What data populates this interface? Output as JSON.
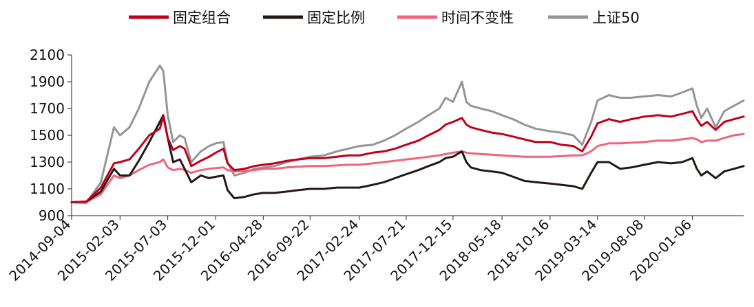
{
  "chart_data": {
    "type": "line",
    "title": "",
    "xlabel": "",
    "ylabel": "",
    "ylim": [
      900,
      2100
    ],
    "yticks": [
      900,
      1100,
      1300,
      1500,
      1700,
      1900,
      2100
    ],
    "grid": false,
    "legend_position": "top",
    "x_tick_labels": [
      "2014-09-04",
      "2015-02-03",
      "2015-07-03",
      "2015-12-01",
      "2016-04-28",
      "2016-09-22",
      "2017-02-24",
      "2017-07-21",
      "2017-12-15",
      "2018-05-18",
      "2018-10-16",
      "2019-03-14",
      "2019-08-08",
      "2020-01-06"
    ],
    "x": [
      "2014-09-04",
      "2014-10-20",
      "2014-12-05",
      "2015-01-15",
      "2015-02-03",
      "2015-03-05",
      "2015-04-03",
      "2015-05-06",
      "2015-06-08",
      "2015-06-19",
      "2015-07-03",
      "2015-07-20",
      "2015-08-10",
      "2015-08-25",
      "2015-09-15",
      "2015-10-15",
      "2015-11-10",
      "2015-12-01",
      "2015-12-25",
      "2016-01-07",
      "2016-01-28",
      "2016-02-29",
      "2016-03-31",
      "2016-04-28",
      "2016-06-02",
      "2016-07-12",
      "2016-08-15",
      "2016-09-22",
      "2016-11-04",
      "2016-12-15",
      "2017-01-20",
      "2017-02-24",
      "2017-04-07",
      "2017-05-12",
      "2017-06-16",
      "2017-07-21",
      "2017-08-28",
      "2017-09-29",
      "2017-11-02",
      "2017-11-22",
      "2017-12-15",
      "2018-01-12",
      "2018-01-26",
      "2018-02-09",
      "2018-03-12",
      "2018-04-16",
      "2018-05-18",
      "2018-06-22",
      "2018-07-27",
      "2018-08-31",
      "2018-10-16",
      "2018-11-20",
      "2018-12-28",
      "2019-01-25",
      "2019-02-22",
      "2019-03-14",
      "2019-04-19",
      "2019-05-24",
      "2019-06-28",
      "2019-08-08",
      "2019-09-20",
      "2019-10-31",
      "2019-12-05",
      "2020-01-06",
      "2020-01-20",
      "2020-02-03",
      "2020-02-21",
      "2020-03-19",
      "2020-04-15",
      "2020-05-15",
      "2020-06-15"
    ],
    "series": [
      {
        "name": "固定组合",
        "color": "#c00018",
        "values": [
          1000,
          1005,
          1110,
          1290,
          1300,
          1320,
          1400,
          1500,
          1550,
          1640,
          1480,
          1390,
          1420,
          1400,
          1270,
          1310,
          1340,
          1370,
          1400,
          1290,
          1240,
          1250,
          1270,
          1280,
          1290,
          1310,
          1320,
          1330,
          1330,
          1340,
          1350,
          1350,
          1370,
          1380,
          1400,
          1430,
          1460,
          1500,
          1540,
          1580,
          1600,
          1630,
          1580,
          1560,
          1540,
          1520,
          1510,
          1490,
          1470,
          1450,
          1450,
          1430,
          1420,
          1380,
          1490,
          1590,
          1620,
          1600,
          1620,
          1640,
          1650,
          1640,
          1660,
          1680,
          1620,
          1570,
          1600,
          1540,
          1600,
          1620,
          1640
        ]
      },
      {
        "name": "固定比例",
        "color": "#231816",
        "values": [
          1000,
          1005,
          1080,
          1250,
          1200,
          1200,
          1310,
          1450,
          1600,
          1650,
          1480,
          1300,
          1320,
          1250,
          1150,
          1200,
          1180,
          1190,
          1200,
          1090,
          1030,
          1040,
          1060,
          1070,
          1070,
          1080,
          1090,
          1100,
          1100,
          1110,
          1110,
          1110,
          1130,
          1150,
          1180,
          1210,
          1240,
          1270,
          1300,
          1330,
          1340,
          1380,
          1300,
          1260,
          1240,
          1230,
          1220,
          1190,
          1160,
          1150,
          1140,
          1130,
          1120,
          1100,
          1220,
          1300,
          1300,
          1250,
          1260,
          1280,
          1300,
          1290,
          1300,
          1330,
          1250,
          1200,
          1230,
          1180,
          1230,
          1250,
          1270
        ]
      },
      {
        "name": "时间不变性",
        "color": "#f0637b",
        "values": [
          1000,
          1000,
          1060,
          1200,
          1180,
          1200,
          1240,
          1280,
          1300,
          1320,
          1260,
          1240,
          1250,
          1240,
          1220,
          1240,
          1250,
          1255,
          1260,
          1240,
          1230,
          1235,
          1240,
          1250,
          1250,
          1260,
          1265,
          1270,
          1270,
          1275,
          1280,
          1280,
          1290,
          1300,
          1310,
          1320,
          1330,
          1340,
          1350,
          1360,
          1370,
          1380,
          1370,
          1365,
          1360,
          1355,
          1350,
          1345,
          1340,
          1340,
          1340,
          1345,
          1350,
          1350,
          1380,
          1420,
          1440,
          1440,
          1445,
          1450,
          1460,
          1460,
          1470,
          1480,
          1470,
          1450,
          1460,
          1460,
          1480,
          1500,
          1510
        ]
      },
      {
        "name": "上证50",
        "color": "#959595",
        "values": [
          1000,
          995,
          1150,
          1560,
          1500,
          1560,
          1700,
          1900,
          2020,
          1980,
          1650,
          1450,
          1500,
          1480,
          1300,
          1380,
          1420,
          1440,
          1450,
          1300,
          1200,
          1220,
          1250,
          1260,
          1270,
          1300,
          1320,
          1340,
          1350,
          1380,
          1400,
          1420,
          1430,
          1460,
          1500,
          1550,
          1600,
          1650,
          1700,
          1780,
          1750,
          1900,
          1750,
          1720,
          1700,
          1680,
          1650,
          1620,
          1580,
          1550,
          1530,
          1520,
          1500,
          1430,
          1600,
          1760,
          1800,
          1780,
          1780,
          1790,
          1800,
          1790,
          1820,
          1850,
          1720,
          1630,
          1700,
          1560,
          1680,
          1720,
          1760
        ]
      }
    ]
  }
}
